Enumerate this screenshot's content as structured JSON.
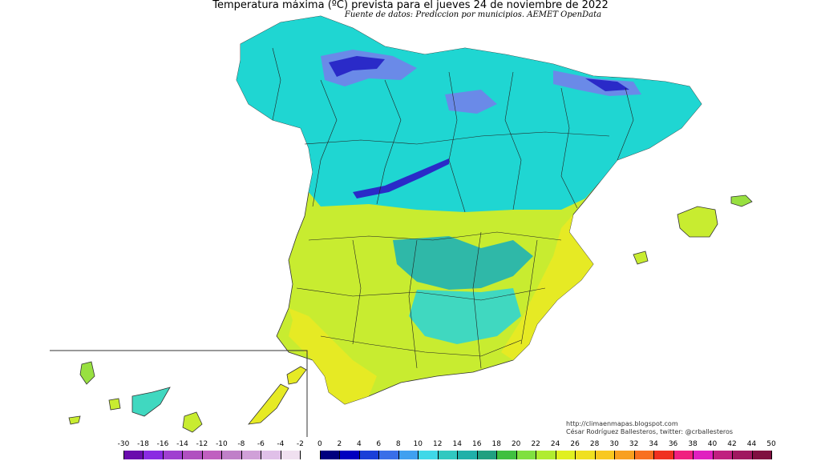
{
  "title": "Temperatura máxima (ºC) prevista para el jueves 24 de noviembre de 2022",
  "subtitle": "Fuente de datos: Prediccion por municipios. AEMET OpenData",
  "credits": {
    "line1": "http://climaenmapas.blogspot.com",
    "line2": "César Rodríguez Ballesteros, twitter: @crballesteros"
  },
  "legend": {
    "labels": [
      "-30",
      "-18",
      "-16",
      "-14",
      "-12",
      "-10",
      "-8",
      "-6",
      "-4",
      "-2",
      "0",
      "2",
      "4",
      "6",
      "8",
      "10",
      "12",
      "14",
      "16",
      "18",
      "20",
      "22",
      "24",
      "26",
      "28",
      "30",
      "32",
      "34",
      "36",
      "38",
      "40",
      "42",
      "44",
      "50"
    ],
    "colors": [
      "#6a0dad",
      "#8a2be2",
      "#a040d0",
      "#b050c0",
      "#c060c0",
      "#c080c8",
      "#d0a0d8",
      "#e0c0e8",
      "#f0e0f0",
      "#ffffff",
      "#00007f",
      "#0000c0",
      "#1a3fd8",
      "#3a6ee8",
      "#40a0f0",
      "#40d8e8",
      "#30c8c0",
      "#20b0a8",
      "#20a080",
      "#40c040",
      "#80e040",
      "#b0ec30",
      "#e0f020",
      "#f0e020",
      "#f8c820",
      "#f8a020",
      "#f87020",
      "#f03020",
      "#f02080",
      "#e020c0",
      "#c02080",
      "#a01860",
      "#801040"
    ]
  },
  "map": {
    "colors": {
      "cold_north": "#1fd6d2",
      "blue_cold": "#6a8ae8",
      "dark_blue": "#2a2ac8",
      "teal_center": "#2fb8a8",
      "mid_green": "#40d8c0",
      "warm_south": "#c8ec30",
      "hot_east": "#e6ea24",
      "coast_green": "#98e040"
    }
  }
}
